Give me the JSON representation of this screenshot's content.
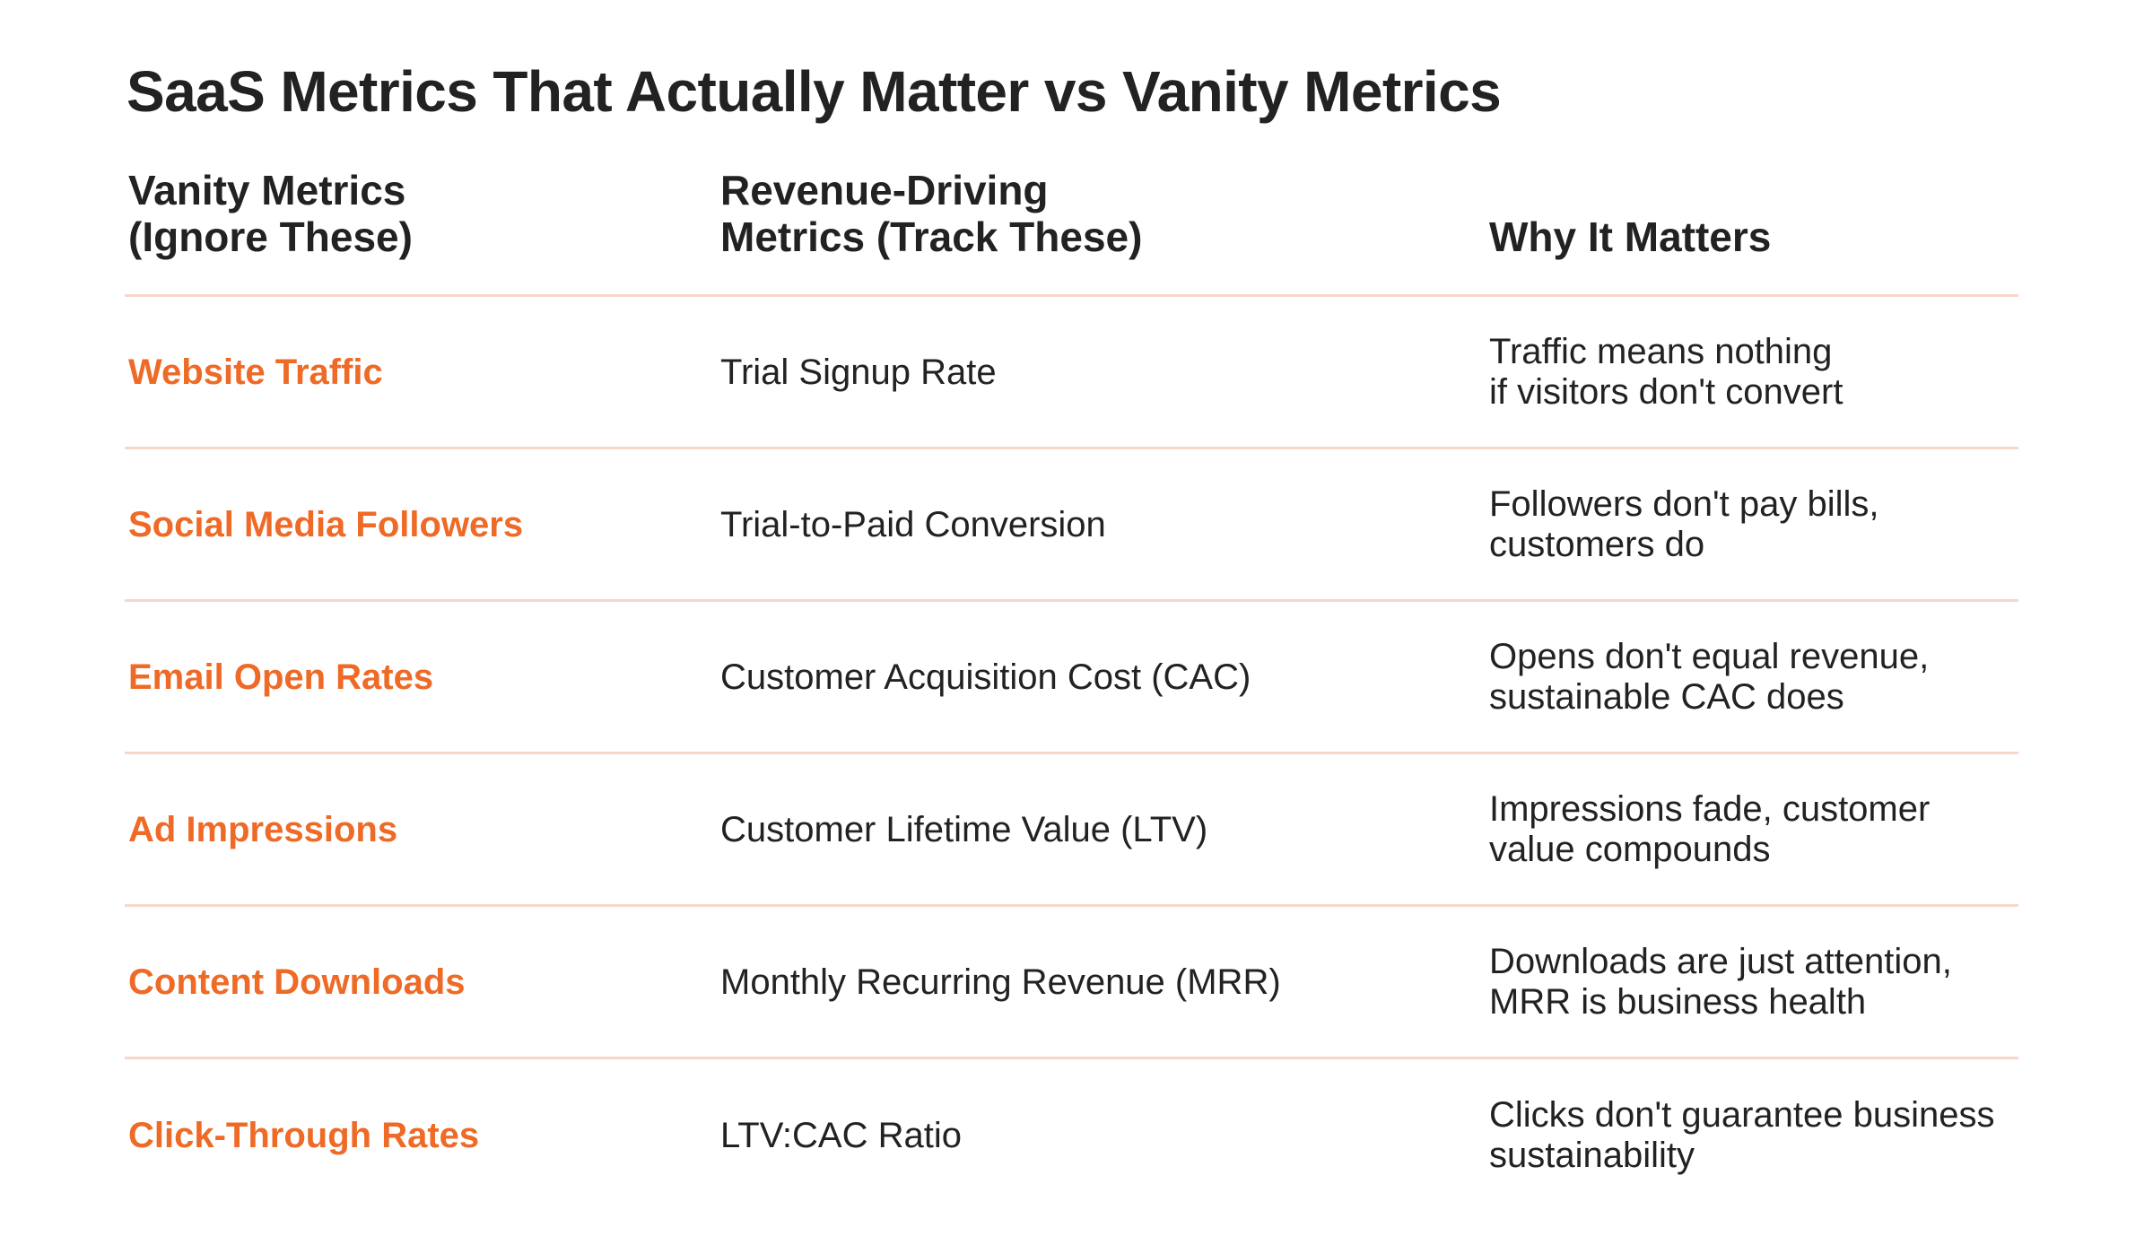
{
  "title": "SaaS Metrics That Actually Matter vs Vanity Metrics",
  "colors": {
    "accent": "#EE6A26",
    "text": "#222222",
    "divider": "#F7D8C8",
    "background": "#FFFFFF"
  },
  "table": {
    "headers": [
      "Vanity Metrics\n(Ignore These)",
      "Revenue-Driving\nMetrics (Track These)",
      "Why It Matters"
    ],
    "rows": [
      {
        "vanity": "Website Traffic",
        "revenue": "Trial Signup Rate",
        "why": "Traffic means nothing\nif visitors don't convert"
      },
      {
        "vanity": "Social Media Followers",
        "revenue": "Trial-to-Paid Conversion",
        "why": "Followers don't pay bills,\ncustomers do"
      },
      {
        "vanity": "Email Open Rates",
        "revenue": "Customer Acquisition Cost (CAC)",
        "why": "Opens don't equal revenue,\nsustainable CAC does"
      },
      {
        "vanity": "Ad Impressions",
        "revenue": "Customer Lifetime Value (LTV)",
        "why": "Impressions fade, customer\nvalue compounds"
      },
      {
        "vanity": "Content Downloads",
        "revenue": "Monthly Recurring Revenue (MRR)",
        "why": "Downloads are just attention,\nMRR is business health"
      },
      {
        "vanity": "Click-Through Rates",
        "revenue": "LTV:CAC Ratio",
        "why": "Clicks don't guarantee business\nsustainability"
      }
    ]
  }
}
